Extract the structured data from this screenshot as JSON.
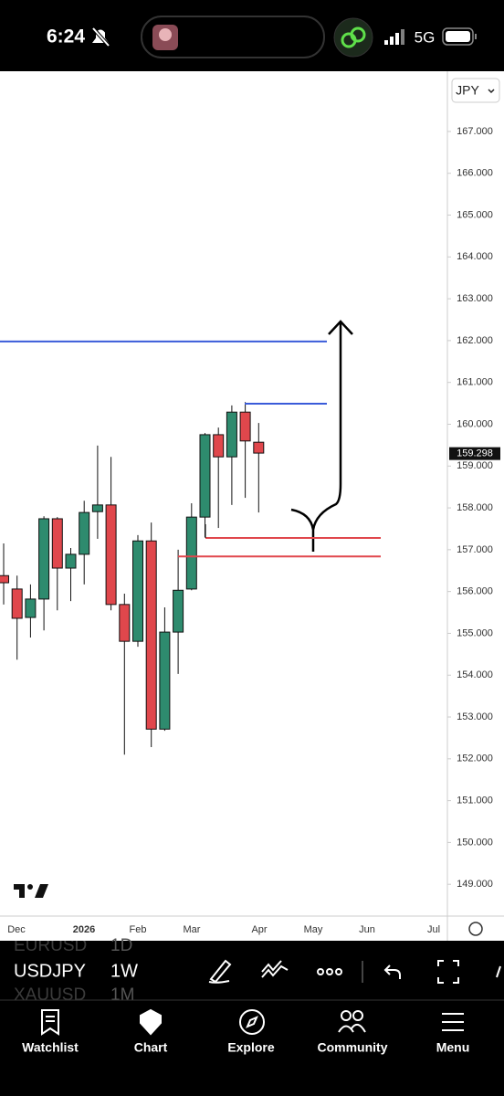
{
  "status_bar": {
    "time": "6:24",
    "network": "5G"
  },
  "chart_data": {
    "type": "candlestick",
    "currency": "JPY",
    "ylim": [
      148.24,
      168.44
    ],
    "yticks": [
      {
        "value": 167,
        "label": "167.000"
      },
      {
        "value": 166,
        "label": "166.000"
      },
      {
        "value": 165,
        "label": "165.000"
      },
      {
        "value": 164,
        "label": "164.000"
      },
      {
        "value": 163,
        "label": "163.000"
      },
      {
        "value": 162,
        "label": "162.000"
      },
      {
        "value": 161,
        "label": "161.000"
      },
      {
        "value": 160,
        "label": "160.000"
      },
      {
        "value": 159,
        "label": "159.000"
      },
      {
        "value": 158,
        "label": "158.000"
      },
      {
        "value": 157,
        "label": "157.000"
      },
      {
        "value": 156,
        "label": "156.000"
      },
      {
        "value": 155,
        "label": "155.000"
      },
      {
        "value": 154,
        "label": "154.000"
      },
      {
        "value": 153,
        "label": "153.000"
      },
      {
        "value": 152,
        "label": "152.000"
      },
      {
        "value": 151,
        "label": "151.000"
      },
      {
        "value": 150,
        "label": "150.000"
      },
      {
        "value": 149,
        "label": "149.000"
      }
    ],
    "x_labels": [
      "Dec",
      "2026",
      "Feb",
      "Mar",
      "Apr",
      "May",
      "Jun",
      "Jul"
    ],
    "open": [
      156.38,
      156.06,
      155.38,
      155.82,
      157.74,
      156.56,
      156.89,
      157.91,
      158.07,
      155.69,
      154.81,
      157.21,
      152.71,
      155.03,
      156.06,
      157.78,
      159.75,
      159.22,
      160.29,
      159.57
    ],
    "high": [
      157.15,
      156.38,
      156.17,
      157.8,
      157.78,
      157.04,
      158.17,
      159.49,
      159.22,
      155.95,
      157.35,
      157.65,
      155.62,
      157.0,
      158.11,
      159.79,
      159.92,
      160.45,
      160.53,
      160.03
    ],
    "low": [
      155.69,
      154.37,
      154.9,
      155.07,
      155.55,
      155.77,
      156.17,
      157.26,
      155.55,
      152.1,
      154.68,
      152.28,
      152.67,
      154.03,
      156.03,
      157.3,
      157.52,
      158.07,
      158.24,
      157.89
    ],
    "close": [
      156.21,
      155.36,
      155.82,
      157.74,
      156.56,
      156.89,
      157.89,
      158.07,
      155.69,
      154.81,
      157.21,
      152.71,
      155.03,
      156.03,
      157.78,
      159.75,
      159.22,
      160.29,
      159.6,
      159.31
    ],
    "up_color": "#2e8b6e",
    "down_color": "#e0474c",
    "last_price": 159.298,
    "levels": [
      {
        "value": 161.98,
        "color": "#3a5bd9"
      },
      {
        "value": 160.49,
        "color": "#3a5bd9"
      },
      {
        "value": 157.28,
        "color": "#e0474c"
      },
      {
        "value": 156.84,
        "color": "#e0474c"
      }
    ]
  },
  "toolbar": {
    "symbol": "USDJPY",
    "interval": "1W",
    "hidden_rows": [
      [
        "EURUSD",
        "1D"
      ],
      [
        "XAUUSD",
        "1M"
      ]
    ]
  },
  "nav": [
    "Watchlist",
    "Chart",
    "Explore",
    "Community",
    "Menu"
  ]
}
